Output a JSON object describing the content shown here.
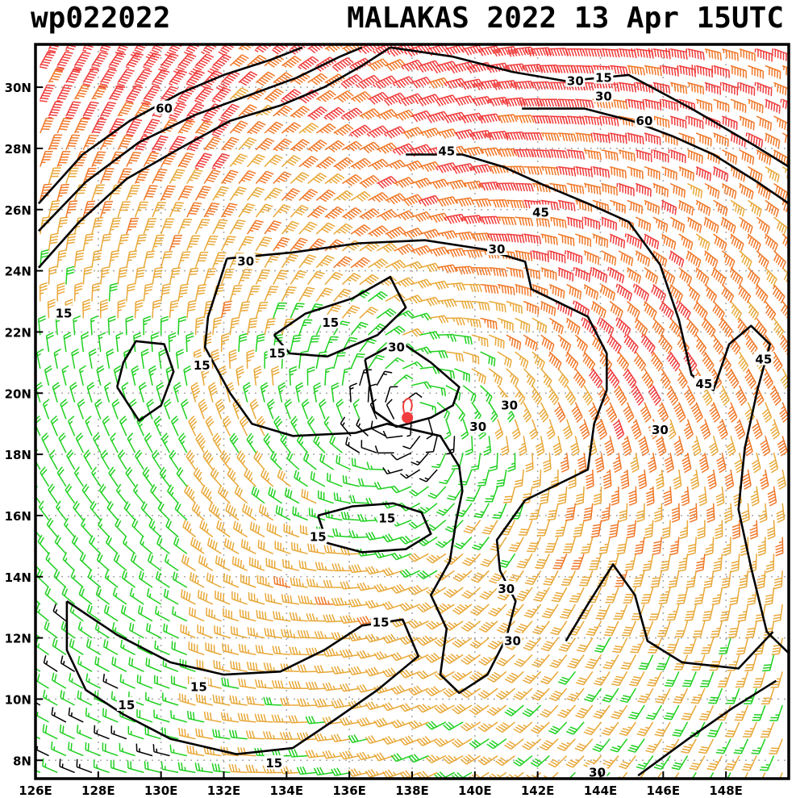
{
  "chart_data": {
    "type": "wind-barb-map",
    "title_left": "wp022022",
    "title_right": "MALAKAS 2022 13 Apr 15UTC",
    "storm": "MALAKAS",
    "xlim": [
      126,
      150
    ],
    "ylim": [
      7.4,
      31.4
    ],
    "lon_ticks": [
      126,
      128,
      130,
      132,
      134,
      136,
      138,
      140,
      142,
      144,
      146,
      148
    ],
    "lon_labels": [
      "126E",
      "128E",
      "130E",
      "132E",
      "134E",
      "136E",
      "138E",
      "140E",
      "142E",
      "144E",
      "146E",
      "148E"
    ],
    "lat_ticks": [
      8,
      10,
      12,
      14,
      16,
      18,
      20,
      22,
      24,
      26,
      28,
      30
    ],
    "lat_labels": [
      "8N",
      "10N",
      "12N",
      "14N",
      "16N",
      "18N",
      "20N",
      "22N",
      "24N",
      "26N",
      "28N",
      "30N"
    ],
    "center": {
      "lon": 137.85,
      "lat": 19.2
    },
    "speed_classes": [
      {
        "min": 0,
        "max": 15,
        "color": "#000000"
      },
      {
        "min": 15,
        "max": 30,
        "color": "#1fd01f"
      },
      {
        "min": 30,
        "max": 45,
        "color": "#e8a838"
      },
      {
        "min": 45,
        "max": 60,
        "color": "#f07828"
      },
      {
        "min": 60,
        "max": 200,
        "color": "#f03c3c"
      }
    ],
    "wind_field": {
      "core_radius_deg": 1.6,
      "rmw_deg": 6.5,
      "vmax_kt": 40,
      "inflow_deg": 20,
      "ne_boost": 0.55,
      "grid_step_deg": 0.55
    },
    "contour_labels": [
      {
        "text": "60",
        "lon": 130.1,
        "lat": 29.3
      },
      {
        "text": "60",
        "lon": 145.4,
        "lat": 28.9
      },
      {
        "text": "30",
        "lon": 143.2,
        "lat": 30.2
      },
      {
        "text": "15",
        "lon": 144.1,
        "lat": 30.3
      },
      {
        "text": "30",
        "lon": 144.1,
        "lat": 29.7
      },
      {
        "text": "45",
        "lon": 139.1,
        "lat": 27.9
      },
      {
        "text": "45",
        "lon": 142.1,
        "lat": 25.9
      },
      {
        "text": "30",
        "lon": 132.7,
        "lat": 24.3
      },
      {
        "text": "30",
        "lon": 140.7,
        "lat": 24.7
      },
      {
        "text": "15",
        "lon": 126.9,
        "lat": 22.6
      },
      {
        "text": "15",
        "lon": 135.4,
        "lat": 22.3
      },
      {
        "text": "15",
        "lon": 133.7,
        "lat": 21.3
      },
      {
        "text": "15",
        "lon": 131.3,
        "lat": 20.9
      },
      {
        "text": "30",
        "lon": 137.5,
        "lat": 21.5
      },
      {
        "text": "45",
        "lon": 149.2,
        "lat": 21.1
      },
      {
        "text": "45",
        "lon": 147.3,
        "lat": 20.3
      },
      {
        "text": "30",
        "lon": 141.1,
        "lat": 19.6
      },
      {
        "text": "30",
        "lon": 140.1,
        "lat": 18.9
      },
      {
        "text": "30",
        "lon": 145.9,
        "lat": 18.8
      },
      {
        "text": "15",
        "lon": 137.2,
        "lat": 15.9
      },
      {
        "text": "15",
        "lon": 135.0,
        "lat": 15.3
      },
      {
        "text": "30",
        "lon": 141.0,
        "lat": 13.6
      },
      {
        "text": "15",
        "lon": 137.0,
        "lat": 12.5
      },
      {
        "text": "30",
        "lon": 141.2,
        "lat": 11.9
      },
      {
        "text": "15",
        "lon": 131.2,
        "lat": 10.4
      },
      {
        "text": "15",
        "lon": 128.9,
        "lat": 9.8
      },
      {
        "text": "15",
        "lon": 133.6,
        "lat": 7.9
      },
      {
        "text": "30",
        "lon": 143.9,
        "lat": 7.6
      }
    ],
    "contours": [
      {
        "name": "contour-30-ring",
        "points": [
          [
            132.1,
            24.4
          ],
          [
            134.2,
            24.6
          ],
          [
            136.3,
            24.9
          ],
          [
            138.4,
            25.0
          ],
          [
            140.3,
            24.7
          ],
          [
            141.6,
            24.3
          ],
          [
            141.8,
            23.4
          ],
          [
            143.6,
            22.5
          ],
          [
            144.2,
            21.3
          ],
          [
            144.2,
            20.1
          ],
          [
            143.8,
            19.0
          ],
          [
            143.6,
            17.5
          ],
          [
            141.6,
            16.5
          ],
          [
            140.7,
            15.2
          ],
          [
            140.8,
            14.2
          ],
          [
            141.3,
            13.2
          ],
          [
            141.0,
            12.0
          ],
          [
            140.4,
            10.8
          ],
          [
            139.5,
            10.2
          ],
          [
            138.9,
            10.8
          ],
          [
            139.1,
            12.3
          ],
          [
            138.6,
            13.4
          ],
          [
            139.2,
            14.5
          ],
          [
            139.4,
            15.8
          ],
          [
            139.6,
            16.8
          ],
          [
            139.5,
            17.6
          ],
          [
            138.9,
            18.6
          ],
          [
            137.2,
            19.0
          ],
          [
            136.2,
            18.7
          ],
          [
            134.2,
            18.6
          ],
          [
            132.9,
            19.0
          ],
          [
            132.2,
            20.0
          ],
          [
            131.4,
            21.5
          ],
          [
            131.5,
            22.5
          ],
          [
            132.1,
            24.4
          ]
        ]
      },
      {
        "name": "contour-15-inner",
        "points": [
          [
            133.6,
            21.9
          ],
          [
            134.6,
            22.6
          ],
          [
            136.1,
            23.1
          ],
          [
            137.3,
            23.8
          ],
          [
            137.8,
            22.8
          ],
          [
            136.9,
            21.9
          ],
          [
            135.3,
            21.2
          ],
          [
            134.1,
            21.3
          ],
          [
            133.6,
            21.9
          ]
        ]
      },
      {
        "name": "contour-30-core",
        "points": [
          [
            136.5,
            21.1
          ],
          [
            137.6,
            21.7
          ],
          [
            138.6,
            21.0
          ],
          [
            139.5,
            20.2
          ],
          [
            139.3,
            19.6
          ],
          [
            138.6,
            19.2
          ],
          [
            137.5,
            18.9
          ],
          [
            136.8,
            19.4
          ],
          [
            136.5,
            21.1
          ]
        ]
      },
      {
        "name": "contour-15-south",
        "points": [
          [
            135.0,
            16.0
          ],
          [
            136.1,
            16.3
          ],
          [
            137.4,
            16.4
          ],
          [
            138.3,
            16.1
          ],
          [
            138.6,
            15.4
          ],
          [
            137.8,
            14.9
          ],
          [
            136.4,
            14.8
          ],
          [
            135.3,
            15.1
          ],
          [
            135.0,
            16.0
          ]
        ]
      },
      {
        "name": "contour-15-west",
        "points": [
          [
            128.6,
            20.2
          ],
          [
            129.3,
            19.1
          ],
          [
            130.0,
            19.6
          ],
          [
            130.4,
            20.7
          ],
          [
            130.1,
            21.6
          ],
          [
            129.2,
            21.7
          ],
          [
            128.8,
            21.0
          ],
          [
            128.6,
            20.2
          ]
        ]
      },
      {
        "name": "contour-15-sw",
        "points": [
          [
            127.0,
            13.2
          ],
          [
            128.6,
            12.1
          ],
          [
            130.3,
            11.2
          ],
          [
            132.0,
            10.8
          ],
          [
            133.8,
            10.9
          ],
          [
            135.2,
            11.6
          ],
          [
            136.4,
            12.4
          ],
          [
            137.7,
            12.6
          ],
          [
            138.2,
            11.4
          ],
          [
            136.9,
            10.3
          ],
          [
            135.5,
            9.3
          ],
          [
            134.2,
            8.4
          ],
          [
            132.4,
            8.2
          ],
          [
            130.3,
            8.7
          ],
          [
            128.8,
            9.5
          ],
          [
            127.6,
            10.3
          ],
          [
            127.0,
            11.6
          ],
          [
            127.0,
            13.2
          ]
        ]
      },
      {
        "name": "contour-45-northeast",
        "points": [
          [
            137.8,
            27.8
          ],
          [
            139.6,
            27.8
          ],
          [
            140.9,
            27.4
          ],
          [
            142.2,
            26.8
          ],
          [
            143.6,
            26.2
          ],
          [
            144.9,
            25.6
          ],
          [
            145.9,
            24.2
          ],
          [
            146.5,
            22.4
          ],
          [
            146.9,
            20.6
          ],
          [
            147.6,
            20.1
          ],
          [
            148.1,
            21.6
          ],
          [
            148.8,
            22.2
          ],
          [
            149.4,
            21.6
          ],
          [
            149.0,
            20.1
          ],
          [
            148.6,
            18.2
          ],
          [
            148.4,
            16.2
          ],
          [
            148.8,
            14.3
          ],
          [
            149.3,
            12.2
          ],
          [
            150.0,
            11.5
          ]
        ]
      },
      {
        "name": "contour-60-ne",
        "points": [
          [
            141.5,
            29.3
          ],
          [
            143.5,
            29.3
          ],
          [
            145.0,
            28.9
          ],
          [
            146.3,
            28.4
          ],
          [
            147.6,
            27.8
          ],
          [
            149.0,
            26.9
          ],
          [
            150.0,
            26.2
          ]
        ]
      },
      {
        "name": "contour-30-north",
        "points": [
          [
            137.3,
            31.3
          ],
          [
            139.3,
            31.0
          ],
          [
            141.2,
            30.5
          ],
          [
            142.9,
            30.2
          ],
          [
            144.9,
            30.4
          ],
          [
            146.9,
            29.3
          ],
          [
            148.9,
            28.1
          ],
          [
            150.0,
            27.4
          ]
        ]
      },
      {
        "name": "contour-60-nw",
        "points": [
          [
            126.1,
            26.2
          ],
          [
            127.5,
            27.8
          ],
          [
            129.0,
            28.9
          ],
          [
            130.6,
            29.8
          ],
          [
            132.0,
            30.4
          ],
          [
            133.5,
            30.9
          ],
          [
            134.5,
            31.3
          ]
        ]
      },
      {
        "name": "contour-45-nw",
        "points": [
          [
            126.1,
            25.3
          ],
          [
            127.6,
            26.9
          ],
          [
            129.3,
            28.2
          ],
          [
            131.1,
            29.1
          ],
          [
            132.7,
            29.7
          ],
          [
            134.3,
            30.3
          ],
          [
            135.7,
            31.0
          ],
          [
            136.4,
            31.3
          ]
        ]
      },
      {
        "name": "contour-30-nw",
        "points": [
          [
            126.1,
            24.1
          ],
          [
            127.4,
            25.6
          ],
          [
            128.9,
            27.0
          ],
          [
            130.6,
            28.0
          ],
          [
            132.2,
            28.9
          ],
          [
            133.8,
            29.4
          ],
          [
            135.2,
            30.0
          ],
          [
            136.4,
            30.7
          ],
          [
            137.3,
            31.3
          ]
        ]
      },
      {
        "name": "contour-30-southeast",
        "points": [
          [
            142.9,
            11.9
          ],
          [
            143.6,
            13.1
          ],
          [
            144.4,
            14.4
          ],
          [
            145.1,
            13.4
          ],
          [
            145.5,
            11.9
          ],
          [
            146.6,
            11.2
          ],
          [
            148.4,
            11.0
          ],
          [
            149.5,
            12.2
          ]
        ]
      },
      {
        "name": "contour-south-edge",
        "points": [
          [
            145.2,
            7.5
          ],
          [
            146.8,
            8.7
          ],
          [
            148.2,
            9.7
          ],
          [
            149.6,
            10.6
          ]
        ]
      }
    ]
  }
}
